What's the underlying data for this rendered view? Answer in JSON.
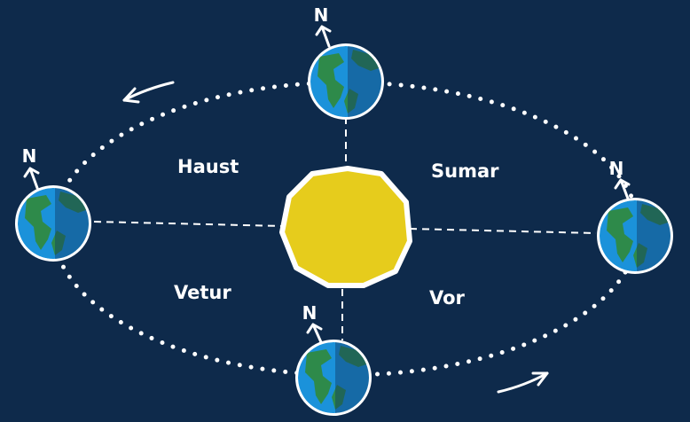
{
  "seasons": [
    "Haust",
    "Sumar",
    "Vetur",
    "Vor"
  ],
  "earths": [
    {
      "north": "N"
    },
    {
      "north": "N"
    },
    {
      "north": "N"
    },
    {
      "north": "N"
    }
  ]
}
